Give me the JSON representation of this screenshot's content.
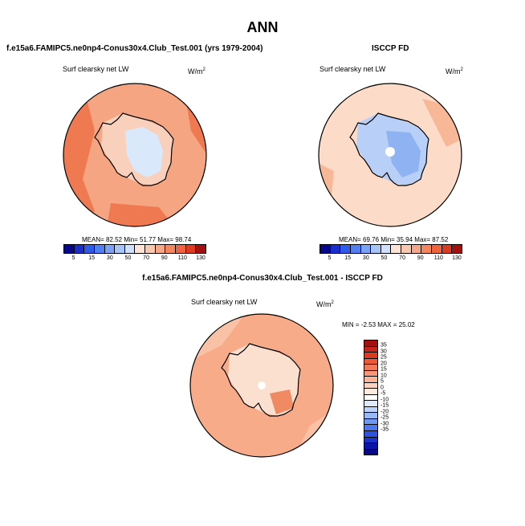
{
  "page_title": "ANN",
  "panels": [
    {
      "header": "f.e15a6.FAMIPC5.ne0np4-Conus30x4.Club_Test.001 (yrs 1979-2004)",
      "variable": "Surf clearsky net LW",
      "units": "W/m",
      "units_sup": "2",
      "stats": "MEAN=  82.52  Min=  51.77  Max=  98.74"
    },
    {
      "header": "ISCCP FD",
      "variable": "Surf clearsky net LW",
      "units": "W/m",
      "units_sup": "2",
      "stats": "MEAN=  69.76  Min=  35.94  Max=  87.52"
    },
    {
      "header": "f.e15a6.FAMIPC5.ne0np4-Conus30x4.Club_Test.001 - ISCCP FD",
      "variable": "Surf clearsky net LW",
      "units": "W/m",
      "units_sup": "2",
      "stats": "MIN =  -2.53 MAX =  25.02"
    }
  ],
  "colorbar_top": {
    "colors": [
      "#08088a",
      "#1a2fc9",
      "#2f5be8",
      "#4f7ff0",
      "#7aa3f5",
      "#a6c4f8",
      "#cfe0fb",
      "#fbe3d5",
      "#f9c8ae",
      "#f6a786",
      "#f3865f",
      "#ef6440",
      "#dd3a24",
      "#a31010"
    ],
    "ticks": [
      "5",
      "15",
      "30",
      "50",
      "70",
      "90",
      "110",
      "130"
    ]
  },
  "colorbar_diff": {
    "colors": [
      "#a31010",
      "#c4241a",
      "#dd3a24",
      "#ef5a36",
      "#f3785a",
      "#f6977a",
      "#f9b598",
      "#fbd3bf",
      "#fdebdf",
      "#ffffff",
      "#dde9fc",
      "#bdd3f9",
      "#98b8f6",
      "#6f98f2",
      "#4d77ec",
      "#2f52e0",
      "#1a33c8",
      "#0a16a8",
      "#08088a"
    ],
    "ticks": [
      "35",
      "30",
      "25",
      "20",
      "15",
      "10",
      "5",
      "0",
      "-5",
      "-10",
      "-15",
      "-20",
      "-25",
      "-30",
      "-35"
    ]
  },
  "map_colors": {
    "ocean_model": "#f5a582",
    "ocean_model_dark": "#ef7a52",
    "land_model": "#f9d0bb",
    "ice_model": "#d9e8fb",
    "ocean_obs": "#fcdcc8",
    "ocean_obs_mid": "#f8b898",
    "land_obs": "#b8cff7",
    "land_obs_dark": "#8fb2f2",
    "diff_ocean": "#f7ab88",
    "diff_mid": "#f9c2a6",
    "diff_land": "#fbe0d0",
    "diff_dark": "#f08a62"
  }
}
